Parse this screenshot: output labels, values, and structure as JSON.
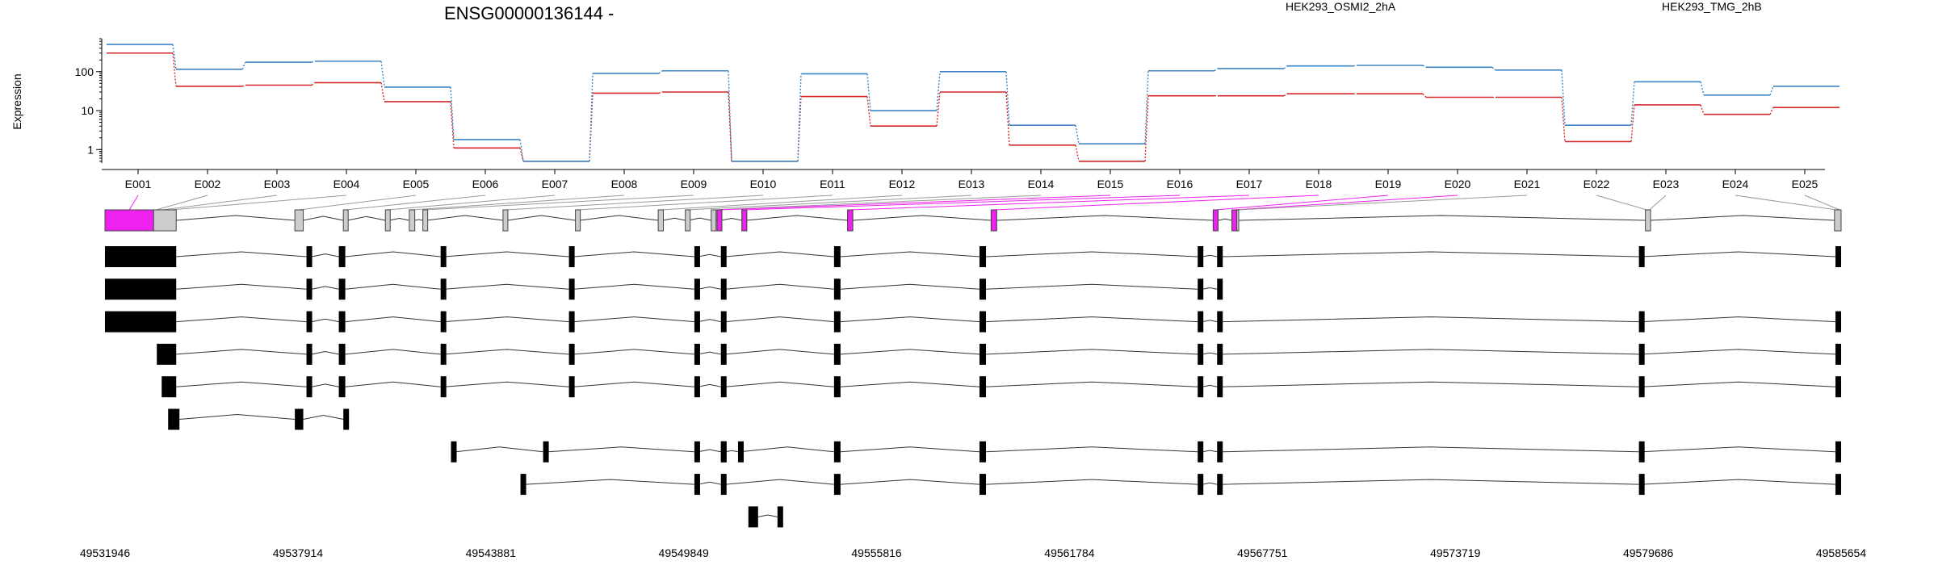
{
  "chart_data": {
    "type": "line",
    "title": "ENSG00000136144 -",
    "ylabel": "Expression",
    "yscale": "log",
    "ylim": [
      0.45,
      700
    ],
    "yticks": [
      1,
      10,
      100
    ],
    "ytick_labels": [
      "1",
      "10",
      "100"
    ],
    "categories": [
      "E001",
      "E002",
      "E003",
      "E004",
      "E005",
      "E006",
      "E007",
      "E008",
      "E009",
      "E010",
      "E011",
      "E012",
      "E013",
      "E014",
      "E015",
      "E016",
      "E017",
      "E018",
      "E019",
      "E020",
      "E021",
      "E022",
      "E023",
      "E024",
      "E025"
    ],
    "series": [
      {
        "name": "HEK293_OSMI2_2hA",
        "color": "#d62728",
        "values": [
          300,
          42,
          45,
          52,
          17,
          1.1,
          0.5,
          28,
          30,
          0.5,
          23,
          4,
          30,
          1.3,
          0.5,
          24,
          24,
          27,
          27,
          22,
          22,
          1.6,
          14,
          8,
          12
        ]
      },
      {
        "name": "HEK293_TMG_2hB",
        "color": "#3d85c6",
        "values": [
          500,
          115,
          175,
          185,
          40,
          1.8,
          0.5,
          90,
          105,
          0.5,
          88,
          10,
          100,
          4.2,
          1.4,
          105,
          120,
          140,
          145,
          130,
          110,
          4.2,
          55,
          25,
          42
        ]
      }
    ],
    "exon_highlight_color": "#ee22ee",
    "exons": [
      {
        "id": "E001",
        "start": 49531946,
        "end": 49533450,
        "highlight": true
      },
      {
        "id": "E002",
        "start": 49533450,
        "end": 49533620,
        "highlight": false
      },
      {
        "id": "E003",
        "start": 49533620,
        "end": 49533830,
        "highlight": false
      },
      {
        "id": "E004",
        "start": 49533830,
        "end": 49534150,
        "highlight": false
      },
      {
        "id": "E005",
        "start": 49537820,
        "end": 49538080,
        "highlight": false
      },
      {
        "id": "E006",
        "start": 49539320,
        "end": 49539450,
        "highlight": false
      },
      {
        "id": "E007",
        "start": 49540620,
        "end": 49540740,
        "highlight": false
      },
      {
        "id": "E008",
        "start": 49541360,
        "end": 49541530,
        "highlight": false
      },
      {
        "id": "E009",
        "start": 49541780,
        "end": 49541900,
        "highlight": false
      },
      {
        "id": "E010",
        "start": 49544260,
        "end": 49544390,
        "highlight": false
      },
      {
        "id": "E011",
        "start": 49546500,
        "end": 49546630,
        "highlight": false
      },
      {
        "id": "E012",
        "start": 49549060,
        "end": 49549220,
        "highlight": false
      },
      {
        "id": "E013",
        "start": 49549900,
        "end": 49549990,
        "highlight": false
      },
      {
        "id": "E014",
        "start": 49550700,
        "end": 49550820,
        "highlight": false
      },
      {
        "id": "E015",
        "start": 49550880,
        "end": 49551020,
        "highlight": true
      },
      {
        "id": "E016",
        "start": 49551650,
        "end": 49551780,
        "highlight": true
      },
      {
        "id": "E017",
        "start": 49554920,
        "end": 49555080,
        "highlight": true
      },
      {
        "id": "E018",
        "start": 49559360,
        "end": 49559530,
        "highlight": true
      },
      {
        "id": "E019",
        "start": 49566230,
        "end": 49566380,
        "highlight": true
      },
      {
        "id": "E020",
        "start": 49566810,
        "end": 49566950,
        "highlight": true
      },
      {
        "id": "E021",
        "start": 49566950,
        "end": 49567020,
        "highlight": false
      },
      {
        "id": "E022",
        "start": 49579600,
        "end": 49579690,
        "highlight": false
      },
      {
        "id": "E023",
        "start": 49579690,
        "end": 49579760,
        "highlight": false
      },
      {
        "id": "E024",
        "start": 49585450,
        "end": 49585560,
        "highlight": false
      },
      {
        "id": "E025",
        "start": 49585560,
        "end": 49585654,
        "highlight": false
      }
    ],
    "gene_grey_exons": [
      [
        49531946,
        49534150
      ],
      [
        49537820,
        49538080
      ],
      [
        49539320,
        49539450
      ],
      [
        49540620,
        49540740
      ],
      [
        49541360,
        49541530
      ],
      [
        49541780,
        49541900
      ],
      [
        49544260,
        49544390
      ],
      [
        49546500,
        49546630
      ],
      [
        49549060,
        49549220
      ],
      [
        49549900,
        49549990
      ],
      [
        49550700,
        49550820
      ],
      [
        49550880,
        49551020
      ],
      [
        49551650,
        49551780
      ],
      [
        49554920,
        49555080
      ],
      [
        49559360,
        49559530
      ],
      [
        49566230,
        49566380
      ],
      [
        49566810,
        49567020
      ],
      [
        49579600,
        49579760
      ],
      [
        49585450,
        49585654
      ]
    ],
    "transcripts": [
      {
        "exons": [
          [
            49531946,
            49534150
          ],
          [
            49538180,
            49538340
          ],
          [
            49539180,
            49539380
          ],
          [
            49542330,
            49542450
          ],
          [
            49546300,
            49546450
          ],
          [
            49550180,
            49550300
          ],
          [
            49551000,
            49551140
          ],
          [
            49554500,
            49554700
          ],
          [
            49559000,
            49559200
          ],
          [
            49565750,
            49565900
          ],
          [
            49566350,
            49566500
          ],
          [
            49579400,
            49579480
          ],
          [
            49585480,
            49585654
          ]
        ]
      },
      {
        "exons": [
          [
            49531946,
            49534150
          ],
          [
            49538180,
            49538340
          ],
          [
            49539180,
            49539380
          ],
          [
            49542330,
            49542450
          ],
          [
            49546300,
            49546450
          ],
          [
            49550180,
            49550300
          ],
          [
            49551000,
            49551140
          ],
          [
            49554500,
            49554700
          ],
          [
            49559000,
            49559200
          ],
          [
            49565750,
            49565900
          ],
          [
            49566350,
            49566500
          ]
        ]
      },
      {
        "exons": [
          [
            49531946,
            49534150
          ],
          [
            49538180,
            49538340
          ],
          [
            49539180,
            49539380
          ],
          [
            49542330,
            49542450
          ],
          [
            49546300,
            49546450
          ],
          [
            49550180,
            49550300
          ],
          [
            49551000,
            49551140
          ],
          [
            49554500,
            49554700
          ],
          [
            49559000,
            49559200
          ],
          [
            49565750,
            49565900
          ],
          [
            49566350,
            49566500
          ],
          [
            49579400,
            49579480
          ],
          [
            49585480,
            49585654
          ]
        ]
      },
      {
        "exons": [
          [
            49533550,
            49534150
          ],
          [
            49538180,
            49538340
          ],
          [
            49539180,
            49539380
          ],
          [
            49542330,
            49542450
          ],
          [
            49546300,
            49546450
          ],
          [
            49550180,
            49550300
          ],
          [
            49551000,
            49551140
          ],
          [
            49554500,
            49554700
          ],
          [
            49559000,
            49559200
          ],
          [
            49565750,
            49565900
          ],
          [
            49566350,
            49566500
          ],
          [
            49579400,
            49579480
          ],
          [
            49585480,
            49585654
          ]
        ]
      },
      {
        "exons": [
          [
            49533700,
            49534150
          ],
          [
            49538180,
            49538340
          ],
          [
            49539180,
            49539380
          ],
          [
            49542330,
            49542450
          ],
          [
            49546300,
            49546450
          ],
          [
            49550180,
            49550300
          ],
          [
            49551000,
            49551140
          ],
          [
            49554500,
            49554700
          ],
          [
            49559000,
            49559200
          ],
          [
            49565750,
            49565900
          ],
          [
            49566350,
            49566500
          ],
          [
            49579400,
            49579480
          ],
          [
            49585480,
            49585654
          ]
        ]
      },
      {
        "exons": [
          [
            49533900,
            49534250
          ],
          [
            49537820,
            49538080
          ],
          [
            49539320,
            49539450
          ]
        ]
      },
      {
        "exons": [
          [
            49542650,
            49542800
          ],
          [
            49545500,
            49545650
          ],
          [
            49550180,
            49550300
          ],
          [
            49551000,
            49551140
          ],
          [
            49551530,
            49551600
          ],
          [
            49551000,
            49551140
          ],
          [
            49554500,
            49554700
          ],
          [
            49559000,
            49559200
          ],
          [
            49565750,
            49565900
          ],
          [
            49566350,
            49566500
          ],
          [
            49579400,
            49579480
          ],
          [
            49585480,
            49585654
          ]
        ]
      },
      {
        "exons": [
          [
            49544800,
            49544950
          ],
          [
            49550180,
            49550300
          ],
          [
            49551000,
            49551140
          ],
          [
            49554500,
            49554700
          ],
          [
            49559000,
            49559200
          ],
          [
            49565750,
            49565900
          ],
          [
            49566350,
            49566500
          ],
          [
            49579400,
            49579480
          ],
          [
            49585480,
            49585654
          ]
        ]
      },
      {
        "exons": [
          [
            49551850,
            49552150
          ],
          [
            49552750,
            49552880
          ]
        ]
      }
    ],
    "genomic_ticks": [
      49531946,
      49537914,
      49543881,
      49549849,
      49555816,
      49561784,
      49567751,
      49573719,
      49579686,
      49585654
    ],
    "genomic_tick_labels": [
      "49531946",
      "49537914",
      "49543881",
      "49549849",
      "49555816",
      "49561784",
      "49567751",
      "49573719",
      "49579686",
      "49585654"
    ]
  }
}
